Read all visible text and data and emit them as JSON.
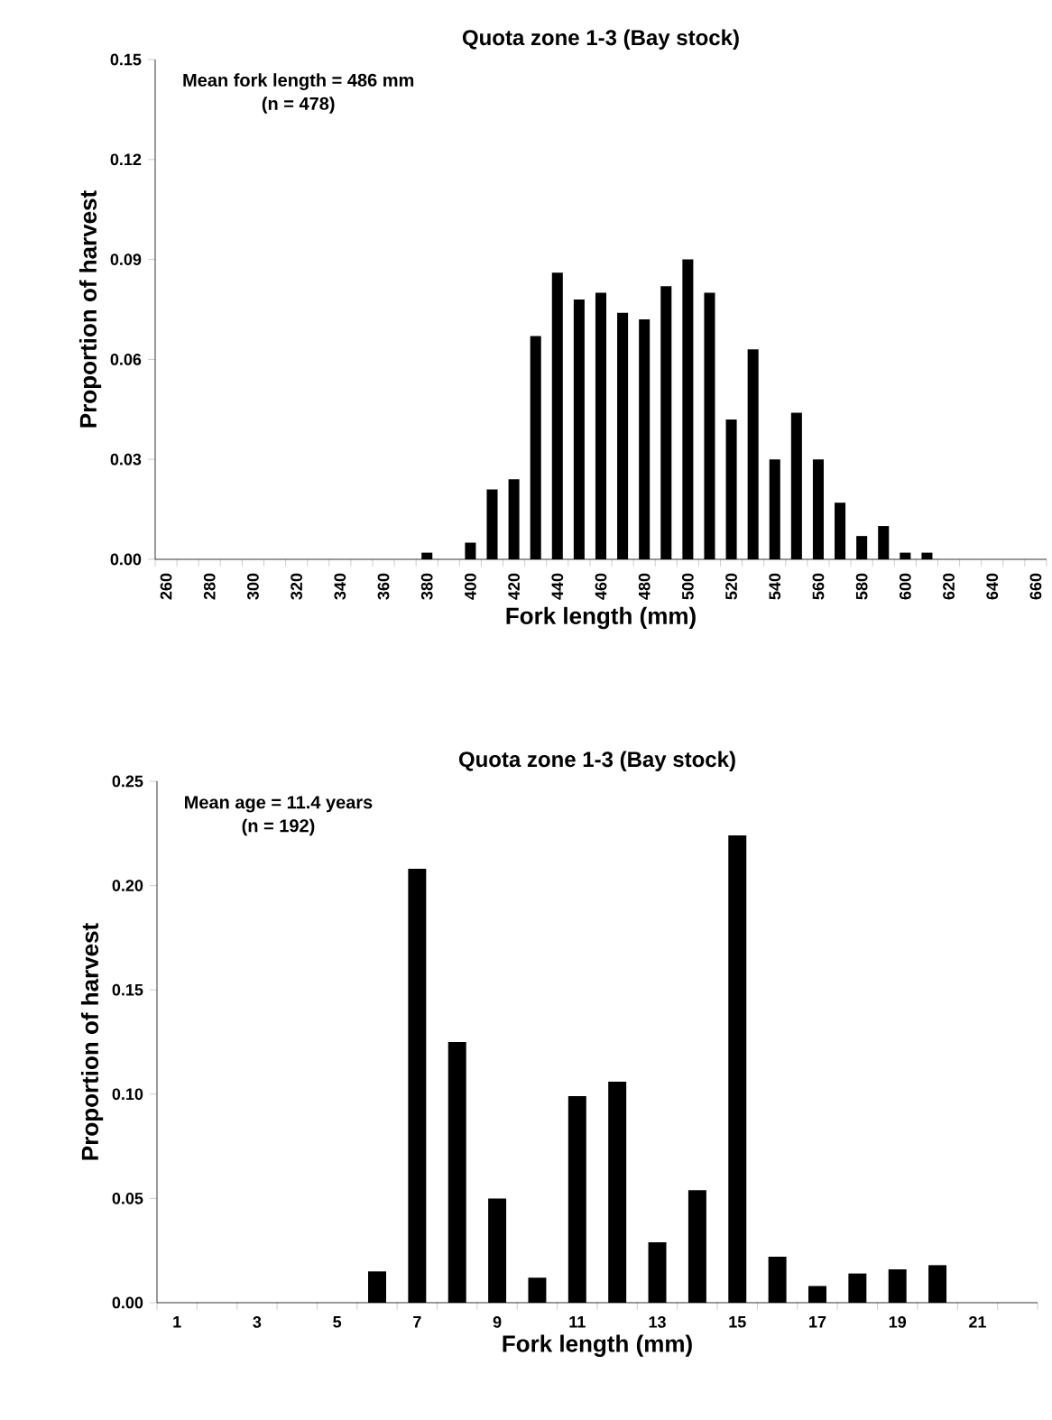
{
  "chart_data": [
    {
      "type": "bar",
      "title": "Quota zone 1-3 (Bay stock)",
      "xlabel": "Fork length (mm)",
      "ylabel": "Proportion of harvest",
      "color": "#000000",
      "annotations": [
        "Mean fork length = 486 mm",
        "(n = 478)"
      ],
      "categories": [
        "260",
        null,
        "280",
        null,
        "300",
        null,
        "320",
        null,
        "340",
        null,
        "360",
        null,
        "380",
        null,
        "400",
        null,
        "420",
        null,
        "440",
        null,
        "460",
        null,
        "480",
        null,
        "500",
        null,
        "520",
        null,
        "540",
        null,
        "560",
        null,
        "580",
        null,
        "600",
        null,
        "620",
        null,
        "640",
        null,
        "660"
      ],
      "values": [
        0,
        0,
        0,
        0,
        0,
        0,
        0,
        0,
        0,
        0,
        0,
        0,
        0.002,
        0,
        0.005,
        0.021,
        0.024,
        0.067,
        0.086,
        0.078,
        0.08,
        0.074,
        0.072,
        0.082,
        0.09,
        0.08,
        0.042,
        0.063,
        0.03,
        0.044,
        0.03,
        0.017,
        0.007,
        0.01,
        0.002,
        0.002,
        0,
        0,
        0,
        0,
        0
      ],
      "ylim": [
        0,
        0.15
      ],
      "yticks": [
        {
          "value": 0,
          "label": "0.00"
        },
        {
          "value": 0.03,
          "label": "0.03"
        },
        {
          "value": 0.06,
          "label": "0.06"
        },
        {
          "value": 0.09,
          "label": "0.09"
        },
        {
          "value": 0.12,
          "label": "0.12"
        },
        {
          "value": 0.15,
          "label": "0.15"
        }
      ]
    },
    {
      "type": "bar",
      "title": "Quota zone 1-3 (Bay stock)",
      "xlabel": "Fork length (mm)",
      "ylabel": "Proportion of harvest",
      "color": "#000000",
      "annotations": [
        "Mean age = 11.4 years",
        "(n = 192)"
      ],
      "categories": [
        "1",
        null,
        "3",
        null,
        "5",
        null,
        "7",
        null,
        "9",
        null,
        "11",
        null,
        "13",
        null,
        "15",
        null,
        "17",
        null,
        "19",
        null,
        "21",
        null
      ],
      "values": [
        0,
        0,
        0,
        0,
        0,
        0.015,
        0.208,
        0.125,
        0.05,
        0.012,
        0.099,
        0.106,
        0.029,
        0.054,
        0.224,
        0.022,
        0.008,
        0.014,
        0.016,
        0.018,
        0,
        0
      ],
      "ylim": [
        0,
        0.25
      ],
      "yticks": [
        {
          "value": 0,
          "label": "0.00"
        },
        {
          "value": 0.05,
          "label": "0.05"
        },
        {
          "value": 0.1,
          "label": "0.10"
        },
        {
          "value": 0.15,
          "label": "0.15"
        },
        {
          "value": 0.2,
          "label": "0.20"
        },
        {
          "value": 0.25,
          "label": "0.25"
        }
      ]
    }
  ]
}
